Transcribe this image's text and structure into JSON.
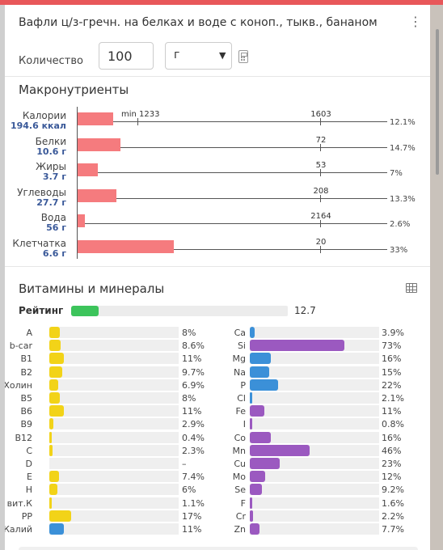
{
  "title": "Вафли ц/з-гречн. на белках и воде с коноп., тыкв., бананом",
  "quantity": {
    "label": "Количество",
    "value": "100",
    "unit": "г"
  },
  "macros": {
    "title": "Макронутриенты",
    "min_label": "min 1233",
    "items": [
      {
        "name": "Калории",
        "value": "194.6 ккал",
        "norm": "1603",
        "percent": "12.1%",
        "fraction": 0.121
      },
      {
        "name": "Белки",
        "value": "10.6 г",
        "norm": "72",
        "percent": "14.7%",
        "fraction": 0.147
      },
      {
        "name": "Жиры",
        "value": "3.7 г",
        "norm": "53",
        "percent": "7%",
        "fraction": 0.07
      },
      {
        "name": "Углеводы",
        "value": "27.7 г",
        "norm": "208",
        "percent": "13.3%",
        "fraction": 0.133
      },
      {
        "name": "Вода",
        "value": "56 г",
        "norm": "2164",
        "percent": "2.6%",
        "fraction": 0.026
      },
      {
        "name": "Клетчатка",
        "value": "6.6 г",
        "norm": "20",
        "percent": "33%",
        "fraction": 0.33
      }
    ]
  },
  "vitamins": {
    "title": "Витамины и минералы",
    "rating": {
      "label": "Рейтинг",
      "value": "12.7",
      "fraction": 0.127
    },
    "colors": {
      "yellow": "#f2d318",
      "blue": "#3b90d8",
      "purple": "#9b59c0"
    },
    "left": [
      {
        "name": "A",
        "percent": "8%",
        "fraction": 0.08,
        "color": "yellow"
      },
      {
        "name": "b-car",
        "percent": "8.6%",
        "fraction": 0.086,
        "color": "yellow"
      },
      {
        "name": "B1",
        "percent": "11%",
        "fraction": 0.11,
        "color": "yellow"
      },
      {
        "name": "B2",
        "percent": "9.7%",
        "fraction": 0.097,
        "color": "yellow"
      },
      {
        "name": "Холин",
        "percent": "6.9%",
        "fraction": 0.069,
        "color": "yellow"
      },
      {
        "name": "B5",
        "percent": "8%",
        "fraction": 0.08,
        "color": "yellow"
      },
      {
        "name": "B6",
        "percent": "11%",
        "fraction": 0.11,
        "color": "yellow"
      },
      {
        "name": "B9",
        "percent": "2.9%",
        "fraction": 0.029,
        "color": "yellow"
      },
      {
        "name": "B12",
        "percent": "0.4%",
        "fraction": 0.004,
        "color": "yellow"
      },
      {
        "name": "C",
        "percent": "2.3%",
        "fraction": 0.023,
        "color": "yellow"
      },
      {
        "name": "D",
        "percent": "–",
        "fraction": 0,
        "color": "yellow"
      },
      {
        "name": "E",
        "percent": "7.4%",
        "fraction": 0.074,
        "color": "yellow"
      },
      {
        "name": "H",
        "percent": "6%",
        "fraction": 0.06,
        "color": "yellow"
      },
      {
        "name": "вит.К",
        "percent": "1.1%",
        "fraction": 0.011,
        "color": "yellow"
      },
      {
        "name": "PP",
        "percent": "17%",
        "fraction": 0.17,
        "color": "yellow"
      },
      {
        "name": "Калий",
        "percent": "11%",
        "fraction": 0.11,
        "color": "blue"
      }
    ],
    "right": [
      {
        "name": "Ca",
        "percent": "3.9%",
        "fraction": 0.039,
        "color": "blue"
      },
      {
        "name": "Si",
        "percent": "73%",
        "fraction": 0.73,
        "color": "purple"
      },
      {
        "name": "Mg",
        "percent": "16%",
        "fraction": 0.16,
        "color": "blue"
      },
      {
        "name": "Na",
        "percent": "15%",
        "fraction": 0.15,
        "color": "blue"
      },
      {
        "name": "P",
        "percent": "22%",
        "fraction": 0.22,
        "color": "blue"
      },
      {
        "name": "Cl",
        "percent": "2.1%",
        "fraction": 0.021,
        "color": "blue"
      },
      {
        "name": "Fe",
        "percent": "11%",
        "fraction": 0.11,
        "color": "purple"
      },
      {
        "name": "I",
        "percent": "0.8%",
        "fraction": 0.008,
        "color": "purple"
      },
      {
        "name": "Co",
        "percent": "16%",
        "fraction": 0.16,
        "color": "purple"
      },
      {
        "name": "Mn",
        "percent": "46%",
        "fraction": 0.46,
        "color": "purple"
      },
      {
        "name": "Cu",
        "percent": "23%",
        "fraction": 0.23,
        "color": "purple"
      },
      {
        "name": "Mo",
        "percent": "12%",
        "fraction": 0.12,
        "color": "purple"
      },
      {
        "name": "Se",
        "percent": "9.2%",
        "fraction": 0.092,
        "color": "purple"
      },
      {
        "name": "F",
        "percent": "1.6%",
        "fraction": 0.016,
        "color": "purple"
      },
      {
        "name": "Cr",
        "percent": "2.2%",
        "fraction": 0.022,
        "color": "purple"
      },
      {
        "name": "Zn",
        "percent": "7.7%",
        "fraction": 0.077,
        "color": "purple"
      }
    ]
  }
}
